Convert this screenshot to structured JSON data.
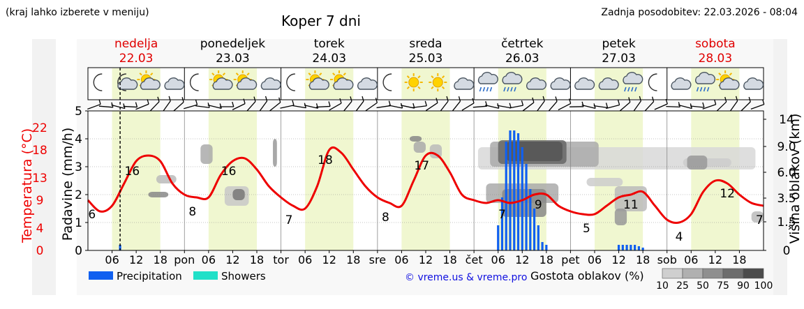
{
  "header": {
    "note": "(kraj lahko izberete v meniju)",
    "title": "Koper 7 dni",
    "updated": "Zadnja posodobitev: 22.03.2026 - 08:04"
  },
  "days": [
    {
      "name": "nedelja",
      "date": "22.03",
      "weekend": true
    },
    {
      "name": "ponedeljek",
      "date": "23.03",
      "weekend": false
    },
    {
      "name": "torek",
      "date": "24.03",
      "weekend": false
    },
    {
      "name": "sreda",
      "date": "25.03",
      "weekend": false
    },
    {
      "name": "četrtek",
      "date": "26.03",
      "weekend": false
    },
    {
      "name": "petek",
      "date": "27.03",
      "weekend": false
    },
    {
      "name": "sobota",
      "date": "28.03",
      "weekend": true
    }
  ],
  "colors": {
    "weekend": "#e00000",
    "temperature": "#ee0000",
    "precip": "#1060f0",
    "showers": "#20e0c8",
    "daylight": "#f0f7d0",
    "title": "#1010e0",
    "link": "#1010e0"
  },
  "icons": [
    "moon",
    "partly-cloudy-night",
    "sun-cloud",
    "cloud",
    "moon",
    "sun-cloud",
    "sun-cloud",
    "cloud",
    "moon",
    "sun-cloud",
    "sun-cloud",
    "cloud",
    "moon",
    "sun",
    "sun",
    "cloud",
    "cloud-rain",
    "cloud-rain",
    "cloud",
    "cloud",
    "cloud",
    "cloud",
    "cloud-rain",
    "moon",
    "cloud",
    "cloud-rain",
    "sun-cloud",
    "cloud"
  ],
  "chart_data": {
    "type": "line",
    "title": "Koper 7 dni",
    "x_unit": "hours since 22.03 00:00",
    "x_range": [
      0,
      168
    ],
    "now_marker_hour": 8,
    "x_tick_labels": [
      {
        "h": 6,
        "t": "06"
      },
      {
        "h": 12,
        "t": "12"
      },
      {
        "h": 18,
        "t": "18"
      },
      {
        "h": 24,
        "t": "pon"
      },
      {
        "h": 30,
        "t": "06"
      },
      {
        "h": 36,
        "t": "12"
      },
      {
        "h": 42,
        "t": "18"
      },
      {
        "h": 48,
        "t": "tor"
      },
      {
        "h": 54,
        "t": "06"
      },
      {
        "h": 60,
        "t": "12"
      },
      {
        "h": 66,
        "t": "18"
      },
      {
        "h": 72,
        "t": "sre"
      },
      {
        "h": 78,
        "t": "06"
      },
      {
        "h": 84,
        "t": "12"
      },
      {
        "h": 90,
        "t": "18"
      },
      {
        "h": 96,
        "t": "čet"
      },
      {
        "h": 102,
        "t": "06"
      },
      {
        "h": 108,
        "t": "12"
      },
      {
        "h": 114,
        "t": "18"
      },
      {
        "h": 120,
        "t": "pet"
      },
      {
        "h": 126,
        "t": "06"
      },
      {
        "h": 132,
        "t": "12"
      },
      {
        "h": 138,
        "t": "18"
      },
      {
        "h": 144,
        "t": "sob"
      },
      {
        "h": 150,
        "t": "06"
      },
      {
        "h": 156,
        "t": "12"
      },
      {
        "h": 162,
        "t": "18"
      }
    ],
    "daylight_hours": [
      [
        6,
        18
      ],
      [
        30,
        42
      ],
      [
        54,
        66
      ],
      [
        78,
        90
      ],
      [
        102,
        114
      ],
      [
        126,
        138
      ],
      [
        150,
        162
      ]
    ],
    "left_axes": {
      "temperature": {
        "label": "Temperatura (°C)",
        "range": [
          0,
          25
        ],
        "ticks": [
          0,
          4,
          9,
          13,
          18,
          22
        ]
      },
      "precipitation": {
        "label": "Padavine (mm/h)",
        "range": [
          0,
          5
        ],
        "ticks": [
          0,
          1,
          2,
          3,
          4,
          5
        ]
      }
    },
    "right_axis": {
      "label": "Višina oblakov (km)",
      "ticks": [
        0,
        1.5,
        3.5,
        6.0,
        9.0,
        14
      ],
      "tick_labels": [
        "0",
        "1.5",
        "3.5",
        "6.0",
        "9.0",
        "14"
      ]
    },
    "series": [
      {
        "name": "Temperatura",
        "unit": "°C",
        "x": [
          0,
          3,
          6,
          9,
          12,
          15,
          18,
          21,
          24,
          27,
          30,
          33,
          36,
          39,
          42,
          45,
          48,
          51,
          54,
          57,
          60,
          63,
          66,
          69,
          72,
          75,
          78,
          81,
          84,
          87,
          90,
          93,
          96,
          99,
          102,
          105,
          108,
          111,
          114,
          117,
          120,
          123,
          126,
          129,
          132,
          135,
          138,
          141,
          144,
          147,
          150,
          153,
          156,
          159,
          162,
          165,
          168
        ],
        "values": [
          9,
          7,
          8,
          12,
          16,
          17,
          16,
          12,
          10,
          9.5,
          9.5,
          13.5,
          16,
          16.5,
          14.5,
          11.5,
          9.5,
          8,
          7.5,
          11.5,
          18,
          17.5,
          14.5,
          11.5,
          9.5,
          8.5,
          8,
          12.5,
          17,
          17,
          14,
          10,
          9,
          8.5,
          9,
          8.5,
          9,
          10,
          10,
          8,
          7,
          6.5,
          6.5,
          8,
          9.5,
          10,
          10.5,
          8,
          5.5,
          5,
          6.5,
          10.5,
          12.5,
          12,
          10,
          8.5,
          8
        ]
      },
      {
        "name": "Precipitation",
        "unit": "mm/h",
        "x": [
          8,
          102,
          103,
          104,
          105,
          106,
          107,
          108,
          109,
          110,
          111,
          112,
          113,
          114,
          132,
          133,
          134,
          135,
          136,
          137,
          138
        ],
        "values": [
          0.2,
          0.9,
          1.9,
          3.9,
          4.3,
          4.3,
          4.2,
          3.7,
          3.1,
          2.2,
          1.5,
          0.9,
          0.3,
          0.2,
          0.2,
          0.2,
          0.2,
          0.2,
          0.2,
          0.15,
          0.1
        ]
      },
      {
        "name": "Showers",
        "unit": "mm/h",
        "x": [],
        "values": []
      }
    ],
    "temperature_labels": [
      {
        "h": 1,
        "v": "6"
      },
      {
        "h": 11,
        "v": "16"
      },
      {
        "h": 26,
        "v": "8"
      },
      {
        "h": 35,
        "v": "16"
      },
      {
        "h": 50,
        "v": "7"
      },
      {
        "h": 59,
        "v": "18"
      },
      {
        "h": 74,
        "v": "8"
      },
      {
        "h": 83,
        "v": "17"
      },
      {
        "h": 103,
        "v": "7"
      },
      {
        "h": 112,
        "v": "9"
      },
      {
        "h": 124,
        "v": "5"
      },
      {
        "h": 135,
        "v": "11"
      },
      {
        "h": 147,
        "v": "4"
      },
      {
        "h": 159,
        "v": "12"
      },
      {
        "h": 167,
        "v": "7"
      }
    ],
    "cloud_cover_note": "gray cloud density areas"
  },
  "legend": {
    "precipitation": "Precipitation",
    "showers": "Showers",
    "credit": "© vreme.us & vreme.pro",
    "cloud_density": "Gostota oblakov (%)",
    "cloud_levels": [
      "10",
      "25",
      "50",
      "75",
      "90",
      "100"
    ]
  }
}
